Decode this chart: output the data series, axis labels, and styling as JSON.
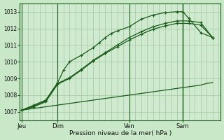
{
  "background_color": "#c8e8c8",
  "plot_bg_color": "#d0ead0",
  "grid_color": "#a0c8a0",
  "line_color": "#1a5c1a",
  "title": "Pression niveau de la mer( hPa )",
  "ylabel_ticks": [
    1007,
    1008,
    1009,
    1010,
    1011,
    1012,
    1013
  ],
  "ylim": [
    1006.5,
    1013.5
  ],
  "xtick_labels": [
    "Jeu",
    "Dim",
    "Ven",
    "Sam"
  ],
  "xtick_positions": [
    0,
    36,
    108,
    162
  ],
  "xlim": [
    -2,
    200
  ],
  "vline_positions": [
    0,
    36,
    108,
    162
  ],
  "now_vline": 162,
  "series_flat": {
    "x": [
      0,
      6,
      12,
      18,
      24,
      30,
      36,
      42,
      48,
      54,
      60,
      66,
      72,
      78,
      84,
      90,
      96,
      102,
      108,
      114,
      120,
      126,
      132,
      138,
      144,
      150,
      156,
      162,
      168,
      174,
      180,
      186,
      192
    ],
    "y": [
      1007.1,
      1007.15,
      1007.2,
      1007.25,
      1007.3,
      1007.35,
      1007.4,
      1007.45,
      1007.5,
      1007.55,
      1007.6,
      1007.65,
      1007.7,
      1007.75,
      1007.8,
      1007.85,
      1007.9,
      1007.95,
      1008.0,
      1008.05,
      1008.1,
      1008.15,
      1008.2,
      1008.25,
      1008.3,
      1008.35,
      1008.4,
      1008.45,
      1008.5,
      1008.55,
      1008.6,
      1008.7,
      1008.75
    ]
  },
  "series_lines": [
    {
      "x": [
        0,
        12,
        24,
        36,
        48,
        60,
        72,
        84,
        96,
        108,
        120,
        132,
        144,
        156,
        168,
        180,
        192
      ],
      "y": [
        1007.1,
        1007.3,
        1007.6,
        1008.65,
        1009.0,
        1009.5,
        1010.05,
        1010.5,
        1010.9,
        1011.3,
        1011.65,
        1011.95,
        1012.15,
        1012.3,
        1012.3,
        1012.2,
        1011.45
      ],
      "has_marker": true
    },
    {
      "x": [
        0,
        12,
        24,
        36,
        48,
        60,
        72,
        84,
        96,
        108,
        120,
        132,
        144,
        156,
        168,
        180,
        192
      ],
      "y": [
        1007.1,
        1007.35,
        1007.65,
        1008.7,
        1009.05,
        1009.55,
        1010.1,
        1010.55,
        1011.0,
        1011.45,
        1011.8,
        1012.1,
        1012.3,
        1012.45,
        1012.45,
        1012.35,
        1011.45
      ],
      "has_marker": true
    },
    {
      "x": [
        0,
        12,
        24,
        36,
        42,
        48,
        60,
        72,
        78,
        84,
        90,
        96,
        108,
        120,
        132,
        144,
        156,
        162,
        168,
        180,
        192
      ],
      "y": [
        1007.1,
        1007.4,
        1007.7,
        1008.75,
        1009.5,
        1010.0,
        1010.4,
        1010.85,
        1011.15,
        1011.45,
        1011.7,
        1011.85,
        1012.1,
        1012.55,
        1012.8,
        1012.95,
        1013.0,
        1013.0,
        1012.6,
        1011.75,
        1011.45
      ],
      "has_marker": true
    }
  ]
}
